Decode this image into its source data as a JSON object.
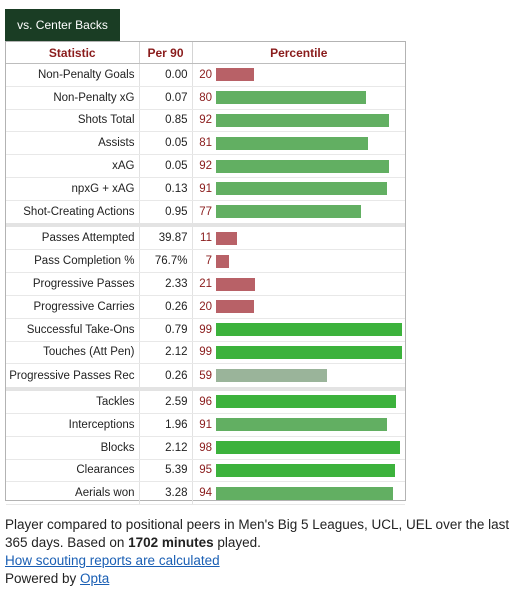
{
  "tab": {
    "label": "vs. Center Backs"
  },
  "headers": {
    "statistic": "Statistic",
    "per90": "Per 90",
    "percentile": "Percentile"
  },
  "groups": [
    {
      "rows": [
        {
          "stat": "Non-Penalty Goals",
          "per90": "0.00",
          "pct": 20
        },
        {
          "stat": "Non-Penalty xG",
          "per90": "0.07",
          "pct": 80
        },
        {
          "stat": "Shots Total",
          "per90": "0.85",
          "pct": 92
        },
        {
          "stat": "Assists",
          "per90": "0.05",
          "pct": 81
        },
        {
          "stat": "xAG",
          "per90": "0.05",
          "pct": 92
        },
        {
          "stat": "npxG + xAG",
          "per90": "0.13",
          "pct": 91
        },
        {
          "stat": "Shot-Creating Actions",
          "per90": "0.95",
          "pct": 77
        }
      ]
    },
    {
      "rows": [
        {
          "stat": "Passes Attempted",
          "per90": "39.87",
          "pct": 11
        },
        {
          "stat": "Pass Completion %",
          "per90": "76.7%",
          "pct": 7
        },
        {
          "stat": "Progressive Passes",
          "per90": "2.33",
          "pct": 21
        },
        {
          "stat": "Progressive Carries",
          "per90": "0.26",
          "pct": 20
        },
        {
          "stat": "Successful Take-Ons",
          "per90": "0.79",
          "pct": 99
        },
        {
          "stat": "Touches (Att Pen)",
          "per90": "2.12",
          "pct": 99
        },
        {
          "stat": "Progressive Passes Rec",
          "per90": "0.26",
          "pct": 59
        }
      ]
    },
    {
      "rows": [
        {
          "stat": "Tackles",
          "per90": "2.59",
          "pct": 96
        },
        {
          "stat": "Interceptions",
          "per90": "1.96",
          "pct": 91
        },
        {
          "stat": "Blocks",
          "per90": "2.12",
          "pct": 98
        },
        {
          "stat": "Clearances",
          "per90": "5.39",
          "pct": 95
        },
        {
          "stat": "Aerials won",
          "per90": "3.28",
          "pct": 94
        }
      ]
    }
  ],
  "bar_colors": {
    "low": "#b86167",
    "mid": "#9ab49a",
    "high": "#62af62",
    "top": "#3cb23c"
  },
  "footer": {
    "line_before_minutes": "Player compared to positional peers in Men's Big 5 Leagues, UCL, UEL over the last 365 days. Based on ",
    "minutes": "1702 minutes",
    "line_after_minutes": " played.",
    "link_label": "How scouting reports are calculated",
    "powered_prefix": "Powered by ",
    "powered_link": "Opta"
  }
}
